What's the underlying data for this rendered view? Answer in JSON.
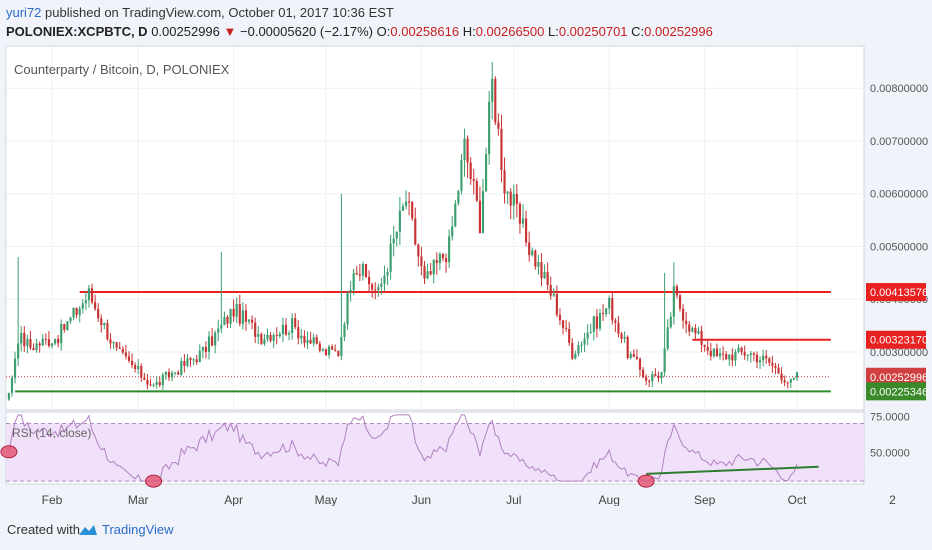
{
  "header": {
    "user": "yuri72",
    "published": "published on TradingView.com, October 01, 2017 10:36 EST",
    "symbol": "POLONIEX:XCPBTC, D",
    "last": "0.00252996",
    "change_arrow": "▼",
    "change": "−0.00005620 (−2.17%)",
    "o_label": "O:",
    "o_value": "0.00258616",
    "h_label": "H:",
    "h_value": "0.00266500",
    "l_label": "L:",
    "l_value": "0.00250701",
    "c_label": "C:",
    "c_value": "0.00252996"
  },
  "footer": {
    "created_with": "Created with",
    "brand": "TradingView"
  },
  "colors": {
    "up": "#3a9e6e",
    "down": "#c83232",
    "resistance": "#e82020",
    "support": "#2e8b2e",
    "rsi_line": "#b080c0",
    "rsi_band": "#f0e0fa",
    "marker": "#e4506e"
  },
  "chart_data": [
    {
      "type": "candlestick",
      "title": "Counterparty / Bitcoin, D, POLONIEX",
      "x_ticks": [
        "Feb",
        "Mar",
        "Apr",
        "May",
        "Jun",
        "Jul",
        "Aug",
        "Sep",
        "Oct",
        "2"
      ],
      "y_ticks": [
        "0.00300000",
        "0.00400000",
        "0.00500000",
        "0.00600000",
        "0.00700000",
        "0.00800000"
      ],
      "ylim": [
        0.0019,
        0.0088
      ],
      "price_labels": [
        "0.00413576",
        "0.00323170",
        "0.00252996",
        "0.00225346"
      ],
      "horizontal_lines": [
        {
          "value": 0.00413576,
          "from": "2017-02-10",
          "to": "2017-10-12",
          "color": "resistance"
        },
        {
          "value": 0.0032317,
          "from": "2017-08-28",
          "to": "2017-10-12",
          "color": "resistance"
        },
        {
          "value": 0.00225346,
          "from": "2017-01-20",
          "to": "2017-10-12",
          "color": "support"
        },
        {
          "value": 0.00252996,
          "from": "2017-01-01",
          "to": "2017-10-12",
          "color": "last",
          "style": "dotted"
        }
      ],
      "anchors": [
        [
          "2017-01-01",
          0.00216
        ],
        [
          "2017-01-18",
          0.00218
        ],
        [
          "2017-01-21",
          0.0033
        ],
        [
          "2017-01-25",
          0.0031
        ],
        [
          "2017-02-03",
          0.0033
        ],
        [
          "2017-02-13",
          0.0041
        ],
        [
          "2017-02-22",
          0.003
        ],
        [
          "2017-03-06",
          0.00235
        ],
        [
          "2017-03-12",
          0.0026
        ],
        [
          "2017-03-22",
          0.003
        ],
        [
          "2017-04-01",
          0.0038
        ],
        [
          "2017-04-10",
          0.0033
        ],
        [
          "2017-04-20",
          0.0035
        ],
        [
          "2017-04-30",
          0.003
        ],
        [
          "2017-05-05",
          0.003
        ],
        [
          "2017-05-10",
          0.0047
        ],
        [
          "2017-05-18",
          0.0041
        ],
        [
          "2017-05-27",
          0.0059
        ],
        [
          "2017-06-02",
          0.0043
        ],
        [
          "2017-06-10",
          0.005
        ],
        [
          "2017-06-15",
          0.0069
        ],
        [
          "2017-06-20",
          0.0055
        ],
        [
          "2017-06-24",
          0.0081
        ],
        [
          "2017-06-28",
          0.0062
        ],
        [
          "2017-07-06",
          0.005
        ],
        [
          "2017-07-14",
          0.004
        ],
        [
          "2017-07-20",
          0.003
        ],
        [
          "2017-08-01",
          0.0039
        ],
        [
          "2017-08-07",
          0.003
        ],
        [
          "2017-08-13",
          0.0025
        ],
        [
          "2017-08-18",
          0.0026
        ],
        [
          "2017-08-22",
          0.0041
        ],
        [
          "2017-08-28",
          0.0034
        ],
        [
          "2017-09-05",
          0.0029
        ],
        [
          "2017-09-15",
          0.003
        ],
        [
          "2017-09-22",
          0.0028
        ],
        [
          "2017-09-29",
          0.0024
        ],
        [
          "2017-10-01",
          0.00253
        ]
      ]
    },
    {
      "type": "line",
      "title": "RSI (14, close)",
      "y_ticks": [
        "50.0000",
        "75.0000"
      ],
      "ylim": [
        28,
        78
      ],
      "bands": [
        30,
        70
      ],
      "trendline": [
        [
          "2017-08-13",
          35
        ],
        [
          "2017-10-08",
          40
        ]
      ],
      "markers": [
        "2017-01-18",
        "2017-03-06",
        "2017-08-13"
      ]
    }
  ]
}
